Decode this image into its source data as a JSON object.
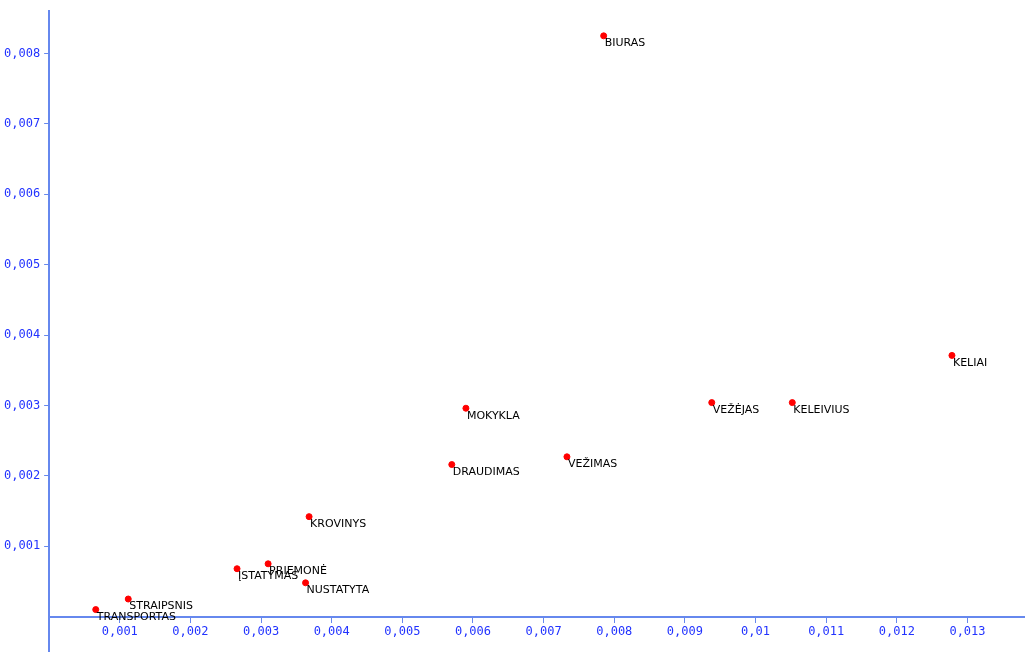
{
  "chart_data": {
    "type": "scatter",
    "marker": "circle",
    "grid": false,
    "legend": false,
    "x": [
      0.00785,
      0.01278,
      0.00938,
      0.01052,
      0.0059,
      0.00733,
      0.0057,
      0.00368,
      0.0031,
      0.00266,
      0.00363,
      0.00112,
      0.00066
    ],
    "series": [
      {
        "color": "#ff0000",
        "values": [
          0.00825,
          0.00371,
          0.00304,
          0.00304,
          0.00296,
          0.00227,
          0.00216,
          0.00142,
          0.00075,
          0.00068,
          0.00048,
          0.00025,
          0.0001
        ]
      }
    ],
    "annotations": [
      {
        "text": "BIURAS",
        "x": 0.00785,
        "y": 0.00825
      },
      {
        "text": "KELIAI",
        "x": 0.01278,
        "y": 0.00371
      },
      {
        "text": "VEŽĖJAS",
        "x": 0.00938,
        "y": 0.00304
      },
      {
        "text": "KELEIVIUS",
        "x": 0.01052,
        "y": 0.00304
      },
      {
        "text": "MOKYKLA",
        "x": 0.0059,
        "y": 0.00296
      },
      {
        "text": "VEŽIMAS",
        "x": 0.00733,
        "y": 0.00227
      },
      {
        "text": "DRAUDIMAS",
        "x": 0.0057,
        "y": 0.00216
      },
      {
        "text": "KROVINYS",
        "x": 0.00368,
        "y": 0.00142
      },
      {
        "text": "PRIEMONĖ",
        "x": 0.0031,
        "y": 0.00075
      },
      {
        "text": "ĮSTATYMAS",
        "x": 0.00266,
        "y": 0.00068
      },
      {
        "text": "NUSTATYTA",
        "x": 0.00363,
        "y": 0.00048
      },
      {
        "text": "STRAIPSNIS",
        "x": 0.00112,
        "y": 0.00025
      },
      {
        "text": "TRANSPORTAS",
        "x": 0.00066,
        "y": 0.0001
      }
    ],
    "xlim": [
      0,
      0.0138
    ],
    "ylim": [
      -0.0005,
      0.0086
    ],
    "xticks": [
      {
        "value": 0.001,
        "label": "0,001"
      },
      {
        "value": 0.002,
        "label": "0,002"
      },
      {
        "value": 0.003,
        "label": "0,003"
      },
      {
        "value": 0.004,
        "label": "0,004"
      },
      {
        "value": 0.005,
        "label": "0,005"
      },
      {
        "value": 0.006,
        "label": "0,006"
      },
      {
        "value": 0.007,
        "label": "0,007"
      },
      {
        "value": 0.008,
        "label": "0,008"
      },
      {
        "value": 0.009,
        "label": "0,009"
      },
      {
        "value": 0.01,
        "label": "0,01"
      },
      {
        "value": 0.011,
        "label": "0,011"
      },
      {
        "value": 0.012,
        "label": "0,012"
      },
      {
        "value": 0.013,
        "label": "0,013"
      }
    ],
    "yticks": [
      {
        "value": 0.001,
        "label": "0,001"
      },
      {
        "value": 0.002,
        "label": "0,002"
      },
      {
        "value": 0.003,
        "label": "0,003"
      },
      {
        "value": 0.004,
        "label": "0,004"
      },
      {
        "value": 0.005,
        "label": "0,005"
      },
      {
        "value": 0.006,
        "label": "0,006"
      },
      {
        "value": 0.007,
        "label": "0,007"
      },
      {
        "value": 0.008,
        "label": "0,008"
      }
    ]
  }
}
